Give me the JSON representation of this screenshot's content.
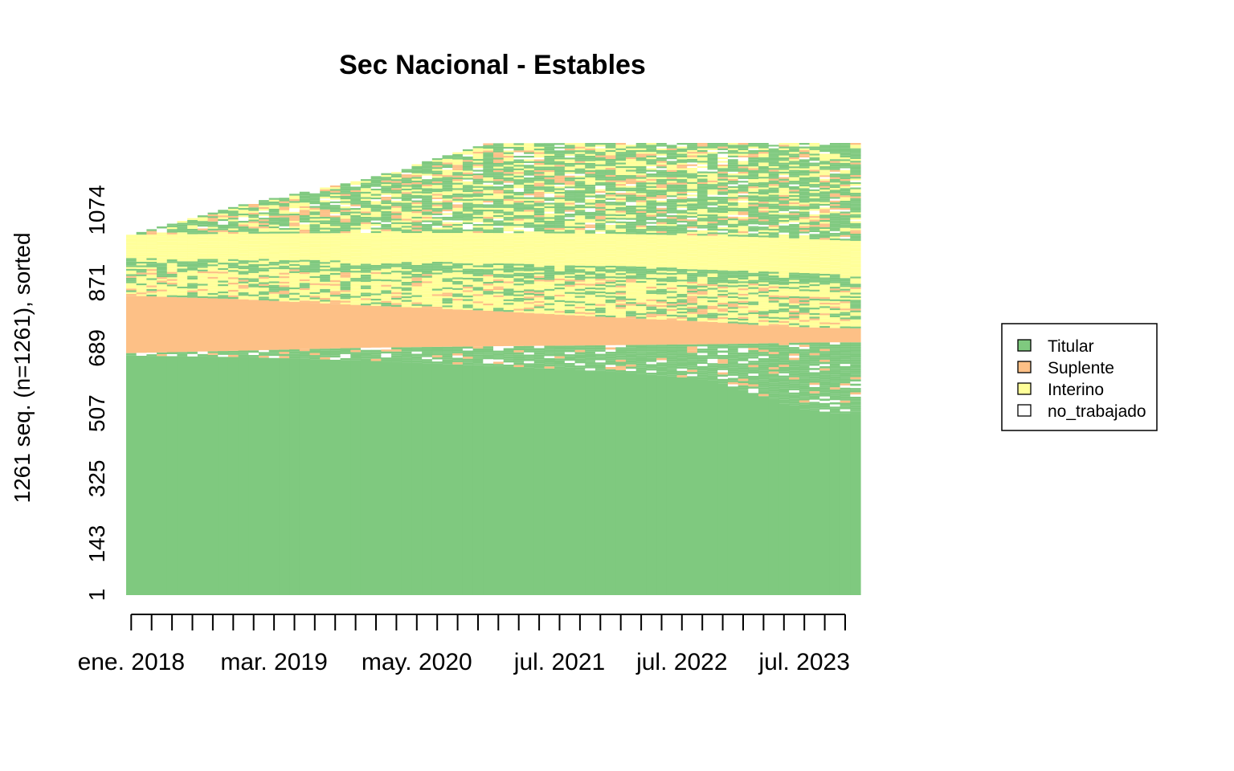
{
  "chart_data": {
    "type": "sequence_index",
    "title": "Sec Nacional - Estables",
    "ylabel": "1261 seq. (n=1261), sorted",
    "n_sequences": 1261,
    "n_periods": 72,
    "start_period": "2018-01",
    "end_period": "2023-12",
    "y_ticks": [
      1,
      143,
      325,
      507,
      689,
      871,
      1074
    ],
    "x_tick_labels": [
      {
        "label": "ene. 2018",
        "period": 1
      },
      {
        "label": "mar. 2019",
        "period": 15
      },
      {
        "label": "may. 2020",
        "period": 29
      },
      {
        "label": "jul. 2021",
        "period": 43
      },
      {
        "label": "jul. 2022",
        "period": 55
      },
      {
        "label": "jul. 2023",
        "period": 67
      }
    ],
    "x_minor_ticks_every": 2,
    "legend": {
      "position": "right",
      "items": [
        {
          "name": "Titular",
          "color": "#7FC97F"
        },
        {
          "name": "Suplente",
          "color": "#FDC086"
        },
        {
          "name": "Interino",
          "color": "#FFFF99"
        },
        {
          "name": "no_trabajado",
          "color": "#FFFFFF"
        }
      ]
    },
    "band_boundaries_by_period": {
      "periods": [
        1,
        12,
        24,
        36,
        48,
        58,
        63,
        66,
        70,
        72
      ],
      "titular_core_top": [
        668,
        664,
        654,
        640,
        624,
        600,
        555,
        523,
        508,
        505
      ],
      "titular_upper_top": [
        675,
        682,
        690,
        694,
        697,
        700,
        702,
        704,
        705,
        705
      ],
      "suplente_top": [
        835,
        825,
        808,
        793,
        775,
        762,
        752,
        748,
        745,
        744
      ],
      "interino_top": [
        1005,
        1008,
        1010,
        1010,
        1008,
        1002,
        998,
        995,
        990,
        988
      ],
      "mixed_top": [
        1005,
        1090,
        1160,
        1260,
        1261,
        1261,
        1261,
        1261,
        1261,
        1261
      ]
    }
  }
}
